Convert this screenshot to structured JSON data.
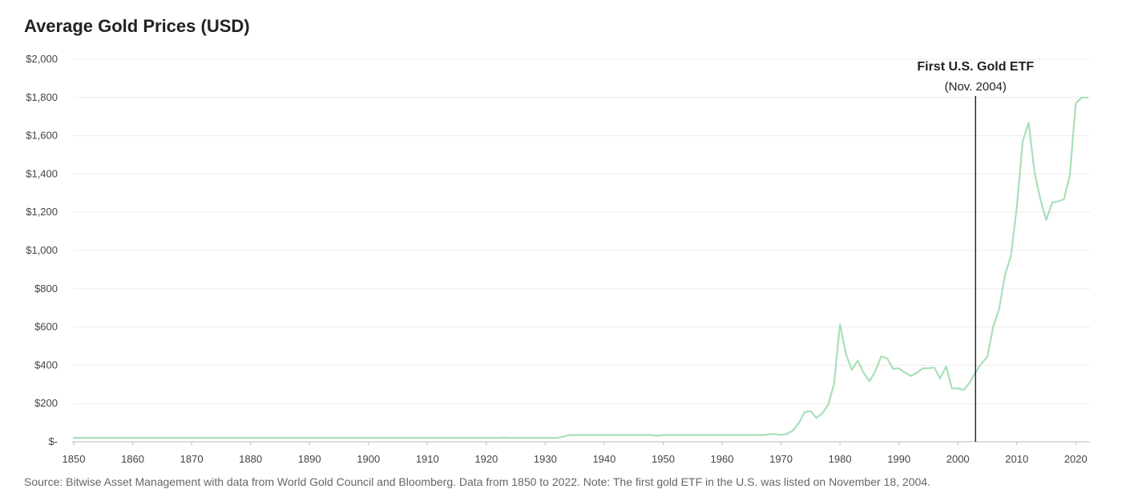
{
  "chart_data": {
    "type": "line",
    "title": "Average Gold Prices (USD)",
    "xlabel": "",
    "ylabel": "",
    "xlim": [
      1850,
      2022
    ],
    "ylim": [
      0,
      2000
    ],
    "x_ticks": [
      1850,
      1860,
      1870,
      1880,
      1890,
      1900,
      1910,
      1920,
      1930,
      1940,
      1950,
      1960,
      1970,
      1980,
      1990,
      2000,
      2010,
      2020
    ],
    "y_ticks": [
      0,
      200,
      400,
      600,
      800,
      1000,
      1200,
      1400,
      1600,
      1800,
      2000
    ],
    "y_tick_labels": [
      "$-",
      "$200",
      "$400",
      "$600",
      "$800",
      "$1,000",
      "$1,200",
      "$1,400",
      "$1,600",
      "$1,800",
      "$2,000"
    ],
    "grid": "horizontal",
    "line_color": "#a8e0b8",
    "series": [
      {
        "points": [
          [
            1850,
            20.67
          ],
          [
            1860,
            20.67
          ],
          [
            1870,
            20.67
          ],
          [
            1880,
            20.67
          ],
          [
            1890,
            20.67
          ],
          [
            1900,
            20.67
          ],
          [
            1910,
            20.67
          ],
          [
            1920,
            20.67
          ],
          [
            1922,
            20.67
          ],
          [
            1923,
            22
          ],
          [
            1924,
            20.67
          ],
          [
            1930,
            20.67
          ],
          [
            1932,
            20.67
          ],
          [
            1933,
            26
          ],
          [
            1934,
            35
          ],
          [
            1940,
            35
          ],
          [
            1945,
            35
          ],
          [
            1946,
            36
          ],
          [
            1948,
            35
          ],
          [
            1949,
            32
          ],
          [
            1950,
            35
          ],
          [
            1960,
            35
          ],
          [
            1967,
            35
          ],
          [
            1968,
            39
          ],
          [
            1969,
            41
          ],
          [
            1970,
            36
          ],
          [
            1971,
            41
          ],
          [
            1972,
            58
          ],
          [
            1973,
            97
          ],
          [
            1974,
            154
          ],
          [
            1975,
            161
          ],
          [
            1976,
            125
          ],
          [
            1977,
            148
          ],
          [
            1978,
            193
          ],
          [
            1979,
            306
          ],
          [
            1980,
            615
          ],
          [
            1981,
            460
          ],
          [
            1982,
            376
          ],
          [
            1983,
            424
          ],
          [
            1984,
            361
          ],
          [
            1985,
            317
          ],
          [
            1986,
            368
          ],
          [
            1987,
            447
          ],
          [
            1988,
            437
          ],
          [
            1989,
            381
          ],
          [
            1990,
            384
          ],
          [
            1991,
            362
          ],
          [
            1992,
            344
          ],
          [
            1993,
            360
          ],
          [
            1994,
            384
          ],
          [
            1995,
            384
          ],
          [
            1996,
            388
          ],
          [
            1997,
            331
          ],
          [
            1998,
            394
          ],
          [
            1999,
            279
          ],
          [
            2000,
            279
          ],
          [
            2001,
            271
          ],
          [
            2002,
            310
          ],
          [
            2003,
            363
          ],
          [
            2004,
            409
          ],
          [
            2005,
            444
          ],
          [
            2006,
            603
          ],
          [
            2007,
            695
          ],
          [
            2008,
            872
          ],
          [
            2009,
            972
          ],
          [
            2010,
            1225
          ],
          [
            2011,
            1572
          ],
          [
            2012,
            1669
          ],
          [
            2013,
            1411
          ],
          [
            2014,
            1266
          ],
          [
            2015,
            1160
          ],
          [
            2016,
            1251
          ],
          [
            2017,
            1257
          ],
          [
            2018,
            1268
          ],
          [
            2019,
            1393
          ],
          [
            2020,
            1770
          ],
          [
            2021,
            1799
          ],
          [
            2022,
            1800
          ]
        ]
      }
    ],
    "annotation": {
      "x": 2003,
      "title": "First U.S. Gold ETF",
      "subtitle": "(Nov. 2004)"
    },
    "source": "Source: Bitwise Asset Management with data from World Gold Council and Bloomberg. Data from 1850 to 2022. Note: The first gold ETF in the U.S. was listed on November 18, 2004."
  }
}
